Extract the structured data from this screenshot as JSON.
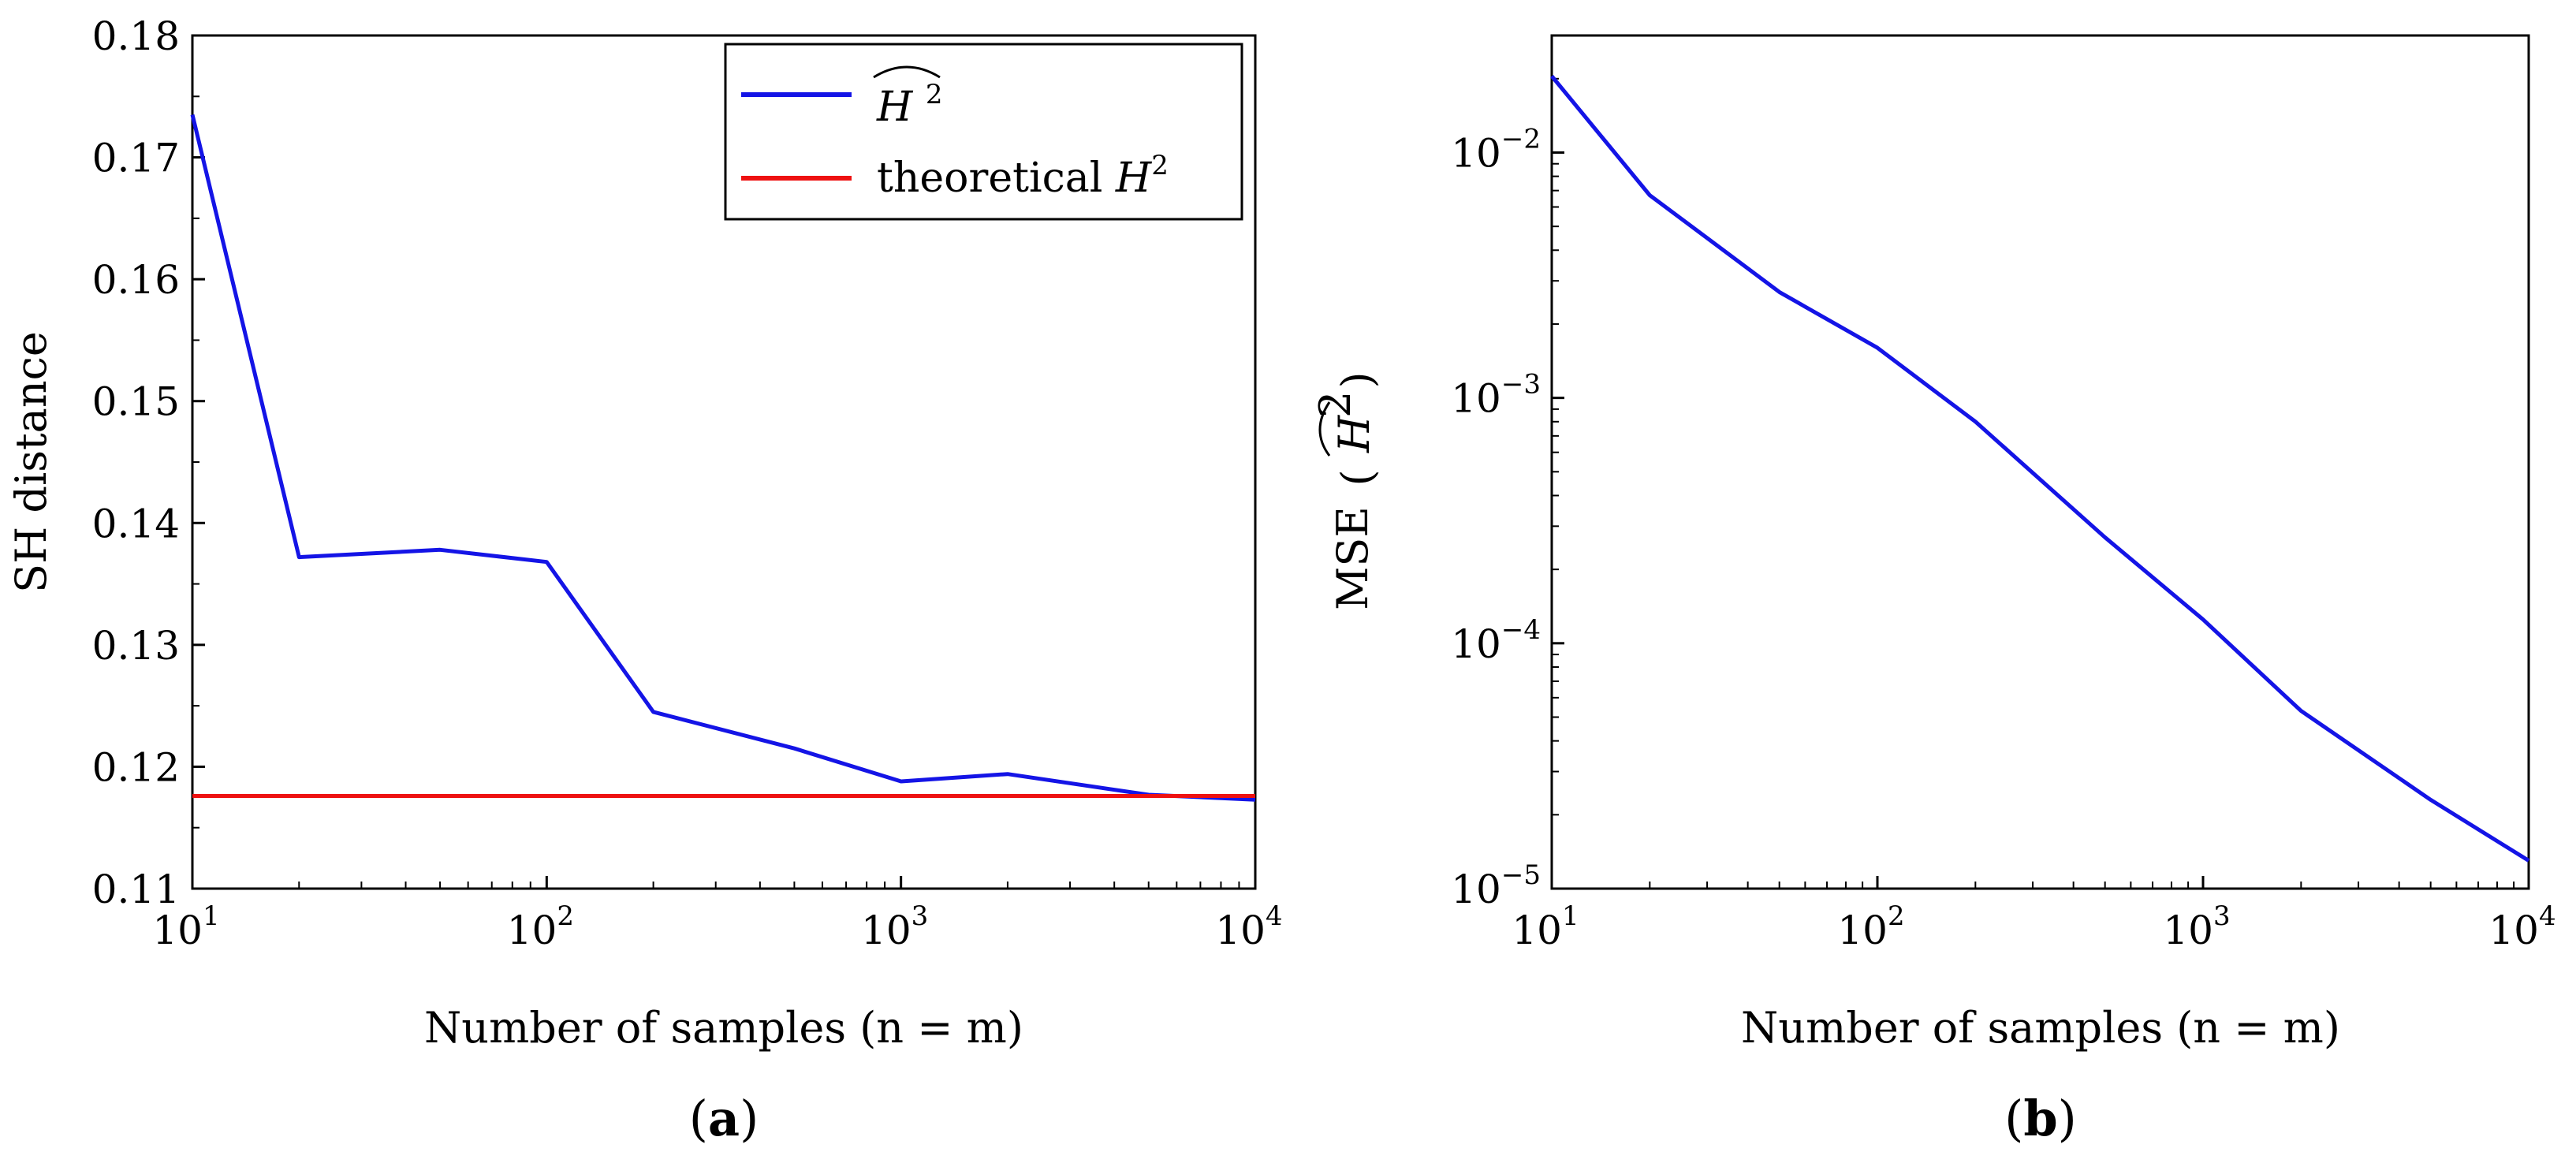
{
  "colors": {
    "estimate": "#1414e6",
    "theoretical": "#ee1111",
    "axes": "#000000"
  },
  "chart_data": [
    {
      "panel": "a",
      "caption_letter": "a",
      "type": "line",
      "xscale": "log",
      "yscale": "linear",
      "xlim": [
        10,
        10000
      ],
      "ylim": [
        0.11,
        0.18
      ],
      "xlabel": "Number of samples (n = m)",
      "ylabel": "SH distance",
      "xticks": [
        {
          "value": 10,
          "base": "10",
          "exp": "1"
        },
        {
          "value": 100,
          "base": "10",
          "exp": "2"
        },
        {
          "value": 1000,
          "base": "10",
          "exp": "3"
        },
        {
          "value": 10000,
          "base": "10",
          "exp": "4"
        }
      ],
      "yticks": [
        {
          "value": 0.11,
          "label": "0.11"
        },
        {
          "value": 0.12,
          "label": "0.12"
        },
        {
          "value": 0.13,
          "label": "0.13"
        },
        {
          "value": 0.14,
          "label": "0.14"
        },
        {
          "value": 0.15,
          "label": "0.15"
        },
        {
          "value": 0.16,
          "label": "0.16"
        },
        {
          "value": 0.17,
          "label": "0.17"
        },
        {
          "value": 0.18,
          "label": "0.18"
        }
      ],
      "legend": {
        "position": "top-right",
        "entries": [
          {
            "series": "estimate",
            "label_main": "H",
            "label_sup": "2",
            "hat": true
          },
          {
            "series": "theoretical",
            "label_prefix": "theoretical ",
            "label_main": "H",
            "label_sup": "2"
          }
        ]
      },
      "series": [
        {
          "name": "estimate",
          "x": [
            10,
            20,
            50,
            100,
            200,
            500,
            1000,
            2000,
            5000,
            10000
          ],
          "y": [
            0.1735,
            0.1372,
            0.1378,
            0.1368,
            0.1245,
            0.1215,
            0.1188,
            0.1194,
            0.1177,
            0.1173
          ]
        },
        {
          "name": "theoretical",
          "x": [
            10,
            10000
          ],
          "y": [
            0.1176,
            0.1176
          ]
        }
      ]
    },
    {
      "panel": "b",
      "caption_letter": "b",
      "type": "line",
      "xscale": "log",
      "yscale": "log",
      "xlim": [
        10,
        10000
      ],
      "ylim": [
        1e-05,
        0.03
      ],
      "xlabel": "Number of samples (n = m)",
      "ylabel": "MSE",
      "ylabel_arg_main": "H",
      "ylabel_arg_sup": "2",
      "xticks": [
        {
          "value": 10,
          "base": "10",
          "exp": "1"
        },
        {
          "value": 100,
          "base": "10",
          "exp": "2"
        },
        {
          "value": 1000,
          "base": "10",
          "exp": "3"
        },
        {
          "value": 10000,
          "base": "10",
          "exp": "4"
        }
      ],
      "yticks": [
        {
          "value": 1e-05,
          "base": "10",
          "exp": "−5"
        },
        {
          "value": 0.0001,
          "base": "10",
          "exp": "−4"
        },
        {
          "value": 0.001,
          "base": "10",
          "exp": "−3"
        },
        {
          "value": 0.01,
          "base": "10",
          "exp": "−2"
        }
      ],
      "series": [
        {
          "name": "estimate",
          "x": [
            10,
            20,
            50,
            100,
            200,
            500,
            1000,
            2000,
            5000,
            10000
          ],
          "y": [
            0.0205,
            0.0067,
            0.0027,
            0.0016,
            0.0008,
            0.00027,
            0.000125,
            5.3e-05,
            2.3e-05,
            1.3e-05
          ]
        }
      ]
    }
  ]
}
